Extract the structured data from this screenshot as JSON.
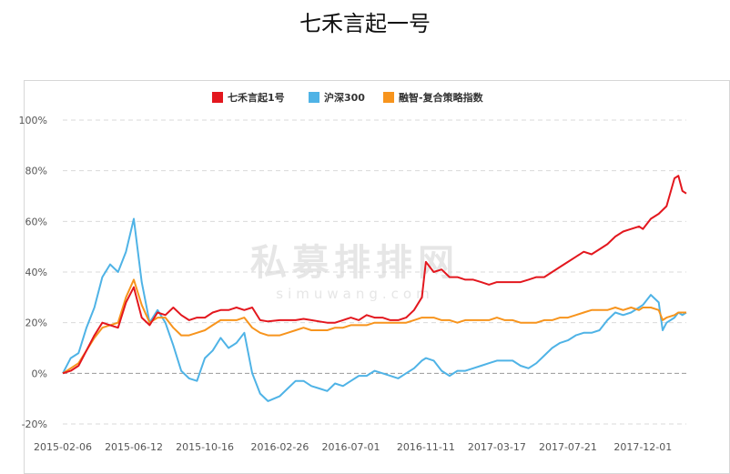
{
  "page": {
    "title": "七禾言起一号"
  },
  "watermark": {
    "main": "私募排排网",
    "sub": "simuwang.com"
  },
  "colors": {
    "series1": "#e3171e",
    "series2": "#4fb3e6",
    "series3": "#f7941d",
    "grid": "#d9d9d9",
    "zero_line": "#999999",
    "axis_text": "#555555",
    "watermark": "#e6e6e6"
  },
  "chart_data": {
    "type": "line",
    "title": "",
    "xlabel": "",
    "ylabel": "",
    "legend_position": "top-center",
    "grid": true,
    "ylim": [
      -20,
      100
    ],
    "y_ticks": [
      -20,
      0,
      20,
      40,
      60,
      80,
      100
    ],
    "y_tick_labels": [
      "-20%",
      "0%",
      "20%",
      "40%",
      "60%",
      "80%",
      "100%"
    ],
    "x_tick_labels": [
      "2015-02-06",
      "2015-06-12",
      "2015-10-16",
      "2016-02-26",
      "2016-07-01",
      "2016-11-11",
      "2017-03-17",
      "2017-07-21",
      "2017-12-01"
    ],
    "x_tick_dates": [
      "2015-02-06",
      "2015-06-12",
      "2015-10-16",
      "2016-02-26",
      "2016-07-01",
      "2016-11-11",
      "2017-03-17",
      "2017-07-21",
      "2017-12-01"
    ],
    "series": [
      {
        "name": "七禾言起1号",
        "points": [
          [
            "2015-02-06",
            0
          ],
          [
            "2015-02-20",
            1
          ],
          [
            "2015-03-06",
            3
          ],
          [
            "2015-03-20",
            9
          ],
          [
            "2015-04-03",
            15
          ],
          [
            "2015-04-17",
            20
          ],
          [
            "2015-05-01",
            19
          ],
          [
            "2015-05-15",
            18
          ],
          [
            "2015-05-29",
            28
          ],
          [
            "2015-06-12",
            34
          ],
          [
            "2015-06-26",
            22
          ],
          [
            "2015-07-10",
            19
          ],
          [
            "2015-07-24",
            24
          ],
          [
            "2015-08-07",
            23
          ],
          [
            "2015-08-21",
            26
          ],
          [
            "2015-09-04",
            23
          ],
          [
            "2015-09-18",
            21
          ],
          [
            "2015-10-02",
            22
          ],
          [
            "2015-10-16",
            22
          ],
          [
            "2015-10-30",
            24
          ],
          [
            "2015-11-13",
            25
          ],
          [
            "2015-11-27",
            25
          ],
          [
            "2015-12-11",
            26
          ],
          [
            "2015-12-25",
            25
          ],
          [
            "2016-01-08",
            26
          ],
          [
            "2016-01-22",
            21
          ],
          [
            "2016-02-05",
            20.5
          ],
          [
            "2016-02-26",
            21
          ],
          [
            "2016-03-11",
            21
          ],
          [
            "2016-03-25",
            21
          ],
          [
            "2016-04-08",
            21.5
          ],
          [
            "2016-04-22",
            21
          ],
          [
            "2016-05-06",
            20.5
          ],
          [
            "2016-05-20",
            20
          ],
          [
            "2016-06-03",
            20
          ],
          [
            "2016-06-17",
            21
          ],
          [
            "2016-07-01",
            22
          ],
          [
            "2016-07-15",
            21
          ],
          [
            "2016-07-29",
            23
          ],
          [
            "2016-08-12",
            22
          ],
          [
            "2016-08-26",
            22
          ],
          [
            "2016-09-09",
            21
          ],
          [
            "2016-09-23",
            21
          ],
          [
            "2016-10-07",
            22
          ],
          [
            "2016-10-21",
            25
          ],
          [
            "2016-11-04",
            30
          ],
          [
            "2016-11-11",
            44
          ],
          [
            "2016-11-25",
            40
          ],
          [
            "2016-12-09",
            41
          ],
          [
            "2016-12-23",
            38
          ],
          [
            "2017-01-06",
            38
          ],
          [
            "2017-01-20",
            37
          ],
          [
            "2017-02-03",
            37
          ],
          [
            "2017-02-17",
            36
          ],
          [
            "2017-03-03",
            35
          ],
          [
            "2017-03-17",
            36
          ],
          [
            "2017-03-31",
            36
          ],
          [
            "2017-04-14",
            36
          ],
          [
            "2017-04-28",
            36
          ],
          [
            "2017-05-12",
            37
          ],
          [
            "2017-05-26",
            38
          ],
          [
            "2017-06-09",
            38
          ],
          [
            "2017-06-23",
            40
          ],
          [
            "2017-07-07",
            42
          ],
          [
            "2017-07-21",
            44
          ],
          [
            "2017-08-04",
            46
          ],
          [
            "2017-08-18",
            48
          ],
          [
            "2017-09-01",
            47
          ],
          [
            "2017-09-15",
            49
          ],
          [
            "2017-09-29",
            51
          ],
          [
            "2017-10-13",
            54
          ],
          [
            "2017-10-27",
            56
          ],
          [
            "2017-11-10",
            57
          ],
          [
            "2017-11-24",
            58
          ],
          [
            "2017-12-01",
            57
          ],
          [
            "2017-12-15",
            61
          ],
          [
            "2017-12-29",
            63
          ],
          [
            "2018-01-12",
            66
          ],
          [
            "2018-01-26",
            77
          ],
          [
            "2018-02-02",
            78
          ],
          [
            "2018-02-09",
            72
          ],
          [
            "2018-02-16",
            71
          ]
        ]
      },
      {
        "name": "沪深300",
        "points": [
          [
            "2015-02-06",
            0
          ],
          [
            "2015-02-20",
            6
          ],
          [
            "2015-03-06",
            8
          ],
          [
            "2015-03-20",
            18
          ],
          [
            "2015-04-03",
            26
          ],
          [
            "2015-04-17",
            38
          ],
          [
            "2015-05-01",
            43
          ],
          [
            "2015-05-15",
            40
          ],
          [
            "2015-05-29",
            48
          ],
          [
            "2015-06-12",
            61
          ],
          [
            "2015-06-26",
            36
          ],
          [
            "2015-07-10",
            20
          ],
          [
            "2015-07-24",
            25
          ],
          [
            "2015-08-07",
            20
          ],
          [
            "2015-08-21",
            11
          ],
          [
            "2015-09-04",
            1
          ],
          [
            "2015-09-18",
            -2
          ],
          [
            "2015-10-02",
            -3
          ],
          [
            "2015-10-16",
            6
          ],
          [
            "2015-10-30",
            9
          ],
          [
            "2015-11-13",
            14
          ],
          [
            "2015-11-27",
            10
          ],
          [
            "2015-12-11",
            12
          ],
          [
            "2015-12-25",
            16
          ],
          [
            "2016-01-08",
            0
          ],
          [
            "2016-01-22",
            -8
          ],
          [
            "2016-02-05",
            -11
          ],
          [
            "2016-02-26",
            -9
          ],
          [
            "2016-03-11",
            -6
          ],
          [
            "2016-03-25",
            -3
          ],
          [
            "2016-04-08",
            -3
          ],
          [
            "2016-04-22",
            -5
          ],
          [
            "2016-05-06",
            -6
          ],
          [
            "2016-05-20",
            -7
          ],
          [
            "2016-06-03",
            -4
          ],
          [
            "2016-06-17",
            -5
          ],
          [
            "2016-07-01",
            -3
          ],
          [
            "2016-07-15",
            -1
          ],
          [
            "2016-07-29",
            -1
          ],
          [
            "2016-08-12",
            1
          ],
          [
            "2016-08-26",
            0
          ],
          [
            "2016-09-09",
            -1
          ],
          [
            "2016-09-23",
            -2
          ],
          [
            "2016-10-07",
            0
          ],
          [
            "2016-10-21",
            2
          ],
          [
            "2016-11-04",
            5
          ],
          [
            "2016-11-11",
            6
          ],
          [
            "2016-11-25",
            5
          ],
          [
            "2016-12-09",
            1
          ],
          [
            "2016-12-23",
            -1
          ],
          [
            "2017-01-06",
            1
          ],
          [
            "2017-01-20",
            1
          ],
          [
            "2017-02-03",
            2
          ],
          [
            "2017-02-17",
            3
          ],
          [
            "2017-03-03",
            4
          ],
          [
            "2017-03-17",
            5
          ],
          [
            "2017-03-31",
            5
          ],
          [
            "2017-04-14",
            5
          ],
          [
            "2017-04-28",
            3
          ],
          [
            "2017-05-12",
            2
          ],
          [
            "2017-05-26",
            4
          ],
          [
            "2017-06-09",
            7
          ],
          [
            "2017-06-23",
            10
          ],
          [
            "2017-07-07",
            12
          ],
          [
            "2017-07-21",
            13
          ],
          [
            "2017-08-04",
            15
          ],
          [
            "2017-08-18",
            16
          ],
          [
            "2017-09-01",
            16
          ],
          [
            "2017-09-15",
            17
          ],
          [
            "2017-09-29",
            21
          ],
          [
            "2017-10-13",
            24
          ],
          [
            "2017-10-27",
            23
          ],
          [
            "2017-11-10",
            24
          ],
          [
            "2017-11-24",
            26
          ],
          [
            "2017-12-01",
            27
          ],
          [
            "2017-12-15",
            31
          ],
          [
            "2017-12-29",
            28
          ],
          [
            "2018-01-05",
            17
          ],
          [
            "2018-01-12",
            20
          ],
          [
            "2018-01-26",
            22
          ],
          [
            "2018-02-02",
            24
          ],
          [
            "2018-02-09",
            23
          ],
          [
            "2018-02-16",
            24
          ]
        ]
      },
      {
        "name": "融智-复合策略指数",
        "points": [
          [
            "2015-02-06",
            0
          ],
          [
            "2015-02-20",
            2
          ],
          [
            "2015-03-06",
            4
          ],
          [
            "2015-03-20",
            9
          ],
          [
            "2015-04-03",
            14
          ],
          [
            "2015-04-17",
            18
          ],
          [
            "2015-05-01",
            19
          ],
          [
            "2015-05-15",
            20
          ],
          [
            "2015-05-29",
            30
          ],
          [
            "2015-06-12",
            37
          ],
          [
            "2015-06-26",
            27
          ],
          [
            "2015-07-10",
            20
          ],
          [
            "2015-07-24",
            22
          ],
          [
            "2015-08-07",
            22
          ],
          [
            "2015-08-21",
            18
          ],
          [
            "2015-09-04",
            15
          ],
          [
            "2015-09-18",
            15
          ],
          [
            "2015-10-02",
            16
          ],
          [
            "2015-10-16",
            17
          ],
          [
            "2015-10-30",
            19
          ],
          [
            "2015-11-13",
            21
          ],
          [
            "2015-11-27",
            21
          ],
          [
            "2015-12-11",
            21
          ],
          [
            "2015-12-25",
            22
          ],
          [
            "2016-01-08",
            18
          ],
          [
            "2016-01-22",
            16
          ],
          [
            "2016-02-05",
            15
          ],
          [
            "2016-02-26",
            15
          ],
          [
            "2016-03-11",
            16
          ],
          [
            "2016-03-25",
            17
          ],
          [
            "2016-04-08",
            18
          ],
          [
            "2016-04-22",
            17
          ],
          [
            "2016-05-06",
            17
          ],
          [
            "2016-05-20",
            17
          ],
          [
            "2016-06-03",
            18
          ],
          [
            "2016-06-17",
            18
          ],
          [
            "2016-07-01",
            19
          ],
          [
            "2016-07-15",
            19
          ],
          [
            "2016-07-29",
            19
          ],
          [
            "2016-08-12",
            20
          ],
          [
            "2016-08-26",
            20
          ],
          [
            "2016-09-09",
            20
          ],
          [
            "2016-09-23",
            20
          ],
          [
            "2016-10-07",
            20
          ],
          [
            "2016-10-21",
            21
          ],
          [
            "2016-11-04",
            22
          ],
          [
            "2016-11-11",
            22
          ],
          [
            "2016-11-25",
            22
          ],
          [
            "2016-12-09",
            21
          ],
          [
            "2016-12-23",
            21
          ],
          [
            "2017-01-06",
            20
          ],
          [
            "2017-01-20",
            21
          ],
          [
            "2017-02-03",
            21
          ],
          [
            "2017-02-17",
            21
          ],
          [
            "2017-03-03",
            21
          ],
          [
            "2017-03-17",
            22
          ],
          [
            "2017-03-31",
            21
          ],
          [
            "2017-04-14",
            21
          ],
          [
            "2017-04-28",
            20
          ],
          [
            "2017-05-12",
            20
          ],
          [
            "2017-05-26",
            20
          ],
          [
            "2017-06-09",
            21
          ],
          [
            "2017-06-23",
            21
          ],
          [
            "2017-07-07",
            22
          ],
          [
            "2017-07-21",
            22
          ],
          [
            "2017-08-04",
            23
          ],
          [
            "2017-08-18",
            24
          ],
          [
            "2017-09-01",
            25
          ],
          [
            "2017-09-15",
            25
          ],
          [
            "2017-09-29",
            25
          ],
          [
            "2017-10-13",
            26
          ],
          [
            "2017-10-27",
            25
          ],
          [
            "2017-11-10",
            26
          ],
          [
            "2017-11-24",
            25
          ],
          [
            "2017-12-01",
            26
          ],
          [
            "2017-12-15",
            26
          ],
          [
            "2017-12-29",
            25
          ],
          [
            "2018-01-05",
            21
          ],
          [
            "2018-01-12",
            22
          ],
          [
            "2018-01-26",
            23
          ],
          [
            "2018-02-02",
            24
          ],
          [
            "2018-02-09",
            24
          ],
          [
            "2018-02-16",
            24
          ]
        ]
      }
    ]
  }
}
